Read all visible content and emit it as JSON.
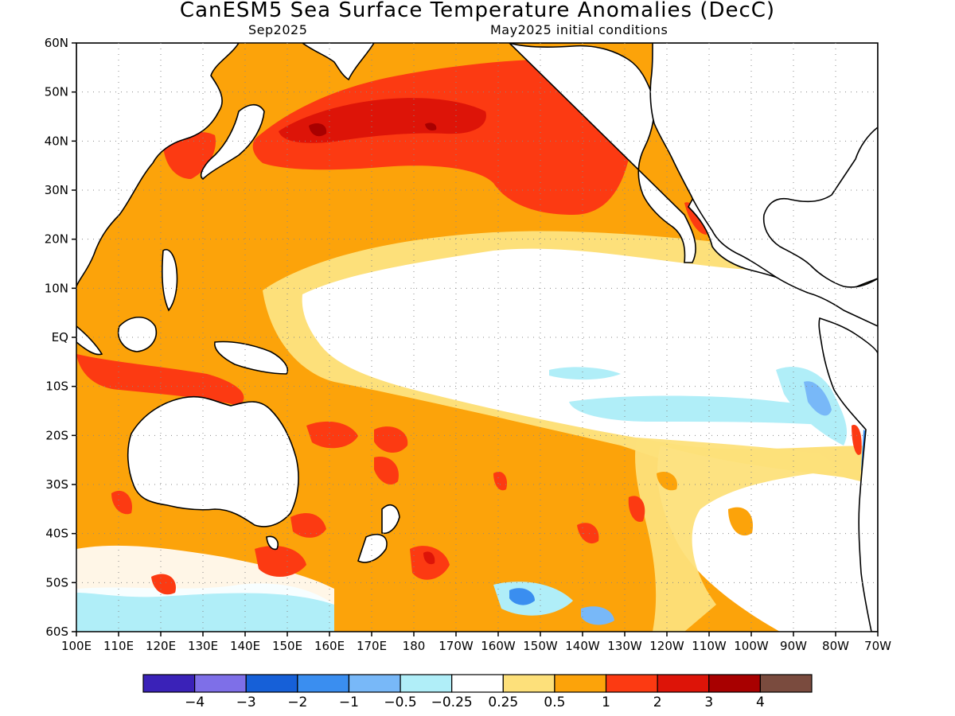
{
  "title": "CanESM5 Sea Surface Temperature Anomalies (DecC)",
  "valid_label": "Sep2025",
  "init_label": "May2025 initial conditions",
  "lat_labels": [
    "60N",
    "50N",
    "40N",
    "30N",
    "20N",
    "10N",
    "EQ",
    "10S",
    "20S",
    "30S",
    "40S",
    "50S",
    "60S"
  ],
  "lon_labels": [
    "100E",
    "110E",
    "120E",
    "130E",
    "140E",
    "150E",
    "160E",
    "170E",
    "180",
    "170W",
    "160W",
    "150W",
    "140W",
    "130W",
    "120W",
    "110W",
    "100W",
    "90W",
    "80W",
    "70W"
  ],
  "colorbar": {
    "colors": [
      "#3a22b8",
      "#7e6fe8",
      "#1660d8",
      "#3a8ef0",
      "#78b8f8",
      "#b0eef8",
      "#ffffff",
      "#fde07a",
      "#fca30a",
      "#fc3a12",
      "#dd1408",
      "#a80000",
      "#7a4b3e"
    ],
    "labels": [
      "-4",
      "-3",
      "-2",
      "-1",
      "-0.5",
      "-0.25",
      "0.25",
      "0.5",
      "1",
      "2",
      "3",
      "4"
    ]
  },
  "palette": {
    "ocean_base": "#fca30a",
    "neutral": "#ffffff",
    "weak_warm": "#fde07a",
    "strong_warm": "#fc3a12",
    "very_strong_warm": "#dd1408",
    "extreme_warm": "#a80000",
    "weak_cool": "#b0eef8",
    "cool": "#78b8f8",
    "cold": "#3a8ef0"
  }
}
